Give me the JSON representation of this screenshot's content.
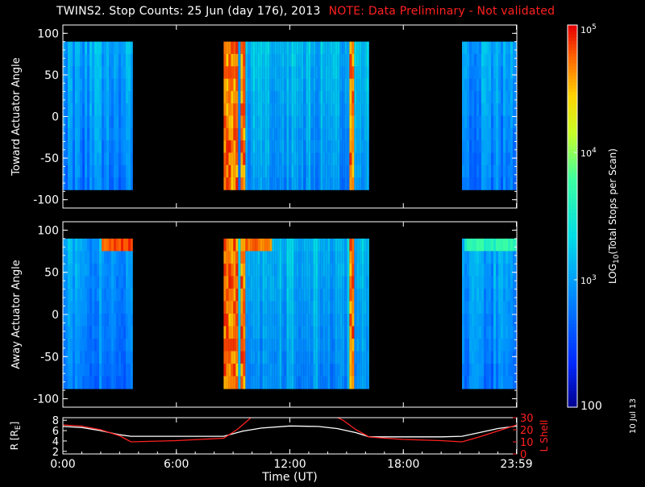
{
  "title": {
    "main": "TWINS2. Stop Counts: 25 Jun (day 176), 2013",
    "note": "NOTE: Data Preliminary - Not validated"
  },
  "date_stamp": "10 Jul 13",
  "colors": {
    "background": "#000000",
    "note": "#ff2020",
    "r_line": "#ffffff",
    "l_shell_line": "#ff2020"
  },
  "chart_data": [
    {
      "type": "heatmap",
      "name": "toward",
      "ylabel": "Toward Actuator Angle",
      "ylim": [
        -110,
        110
      ],
      "yticks": [
        -100,
        -50,
        0,
        50,
        100
      ],
      "data_y_range": [
        -88,
        90
      ],
      "x_hours_range": [
        0,
        24
      ],
      "data_segments_hours": [
        [
          0,
          3.7
        ],
        [
          8.5,
          16.2
        ],
        [
          21.1,
          24
        ]
      ],
      "high_count_bands_hours": [
        [
          8.5,
          9.2
        ],
        [
          9.3,
          9.6
        ],
        [
          15.05,
          15.4
        ]
      ]
    },
    {
      "type": "heatmap",
      "name": "away",
      "ylabel": "Away Actuator Angle",
      "ylim": [
        -110,
        110
      ],
      "yticks": [
        -100,
        -50,
        0,
        50,
        100
      ],
      "data_y_range": [
        -88,
        90
      ],
      "x_hours_range": [
        0,
        24
      ],
      "data_segments_hours": [
        [
          0,
          3.7
        ],
        [
          8.5,
          16.2
        ],
        [
          21.1,
          24
        ]
      ],
      "high_count_bands_hours": [
        [
          8.5,
          9.2
        ],
        [
          9.3,
          9.6
        ],
        [
          15.05,
          15.4
        ]
      ]
    },
    {
      "type": "line",
      "name": "orbit",
      "ylabel_left": "R [R",
      "ylabel_left_sub": "E",
      "ylabel_left_end": "]",
      "ylabel_right": "L Shell",
      "xlabel": "Time (UT)",
      "xticks": [
        "0:00",
        "6:00",
        "12:00",
        "18:00",
        "23:59"
      ],
      "xtick_hours": [
        0,
        6,
        12,
        18,
        23.98
      ],
      "xlim": [
        0,
        24
      ],
      "ylim_left": [
        1.5,
        8.5
      ],
      "yticks_left": [
        2,
        4,
        6,
        8
      ],
      "ylim_right": [
        0,
        30
      ],
      "yticks_right": [
        0,
        10,
        20,
        30
      ],
      "series": [
        {
          "axis": "left",
          "x": [
            0,
            1,
            2,
            3,
            3.6,
            5,
            7,
            8.5,
            9.5,
            10.5,
            12,
            13.5,
            14.5,
            15.5,
            16.2,
            18,
            20,
            21.1,
            22,
            23,
            24
          ],
          "values": [
            6.8,
            6.6,
            6.0,
            5.2,
            4.9,
            4.9,
            4.9,
            4.9,
            5.9,
            6.5,
            6.9,
            6.8,
            6.4,
            5.6,
            4.8,
            4.8,
            4.8,
            4.9,
            5.6,
            6.4,
            6.9
          ]
        },
        {
          "axis": "right",
          "x": [
            0,
            1,
            2,
            3,
            3.6,
            6,
            8.5,
            9.2,
            9.8,
            10.0,
            14.4,
            14.8,
            15.5,
            16.2,
            18,
            20,
            21.1,
            22,
            23,
            24
          ],
          "values": [
            24,
            23,
            20,
            15,
            10,
            11,
            13,
            20,
            28,
            31,
            31,
            28,
            20,
            14,
            12,
            11,
            10,
            14,
            19,
            24
          ]
        }
      ]
    },
    {
      "type": "heatmap",
      "name": "colorbar",
      "label_base": "LOG",
      "label_sub": "10",
      "label_rest": "(Total Stops per Scan)",
      "ticks": [
        {
          "base": "10",
          "exp": "5",
          "value": 100000
        },
        {
          "base": "10",
          "exp": "4",
          "value": 10000
        },
        {
          "base": "10",
          "exp": "3",
          "value": 1000
        },
        {
          "base": "100",
          "exp": "",
          "value": 100
        }
      ],
      "range_log10": [
        2,
        5
      ]
    }
  ]
}
